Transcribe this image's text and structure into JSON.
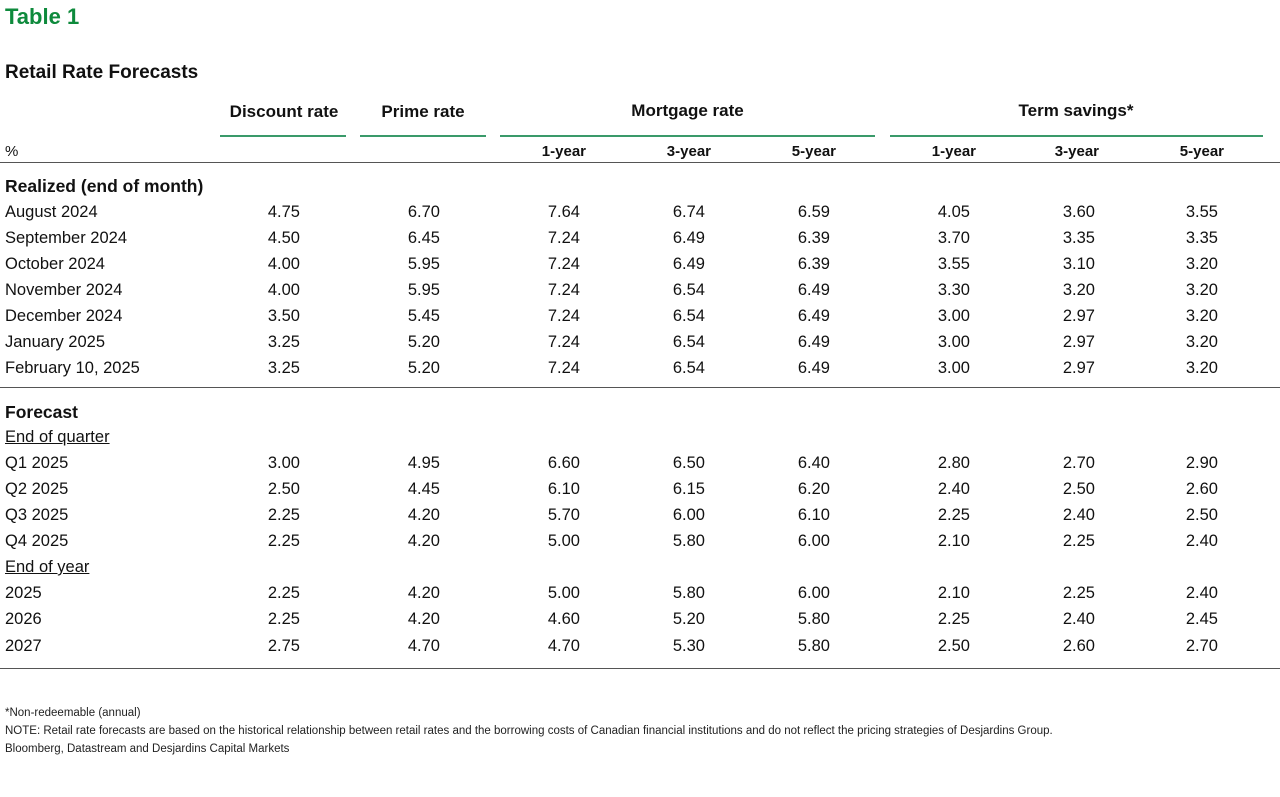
{
  "title": "Table 1",
  "subtitle": "Retail Rate Forecasts",
  "header": {
    "discount": "Discount rate",
    "prime": "Prime rate",
    "mortgage": "Mortgage rate",
    "term": "Term savings*",
    "unit": "%",
    "sub": [
      "1-year",
      "3-year",
      "5-year",
      "1-year",
      "3-year",
      "5-year"
    ]
  },
  "sections": {
    "realized": "Realized (end of month)",
    "forecast": "Forecast",
    "end_quarter": "End of quarter",
    "end_year": "End of year"
  },
  "realized_rows": [
    {
      "label": "August 2024",
      "values": [
        "4.75",
        "6.70",
        "7.64",
        "6.74",
        "6.59",
        "4.05",
        "3.60",
        "3.55"
      ]
    },
    {
      "label": "September 2024",
      "values": [
        "4.50",
        "6.45",
        "7.24",
        "6.49",
        "6.39",
        "3.70",
        "3.35",
        "3.35"
      ]
    },
    {
      "label": "October 2024",
      "values": [
        "4.00",
        "5.95",
        "7.24",
        "6.49",
        "6.39",
        "3.55",
        "3.10",
        "3.20"
      ]
    },
    {
      "label": "November 2024",
      "values": [
        "4.00",
        "5.95",
        "7.24",
        "6.54",
        "6.49",
        "3.30",
        "3.20",
        "3.20"
      ]
    },
    {
      "label": "December 2024",
      "values": [
        "3.50",
        "5.45",
        "7.24",
        "6.54",
        "6.49",
        "3.00",
        "2.97",
        "3.20"
      ]
    },
    {
      "label": "January 2025",
      "values": [
        "3.25",
        "5.20",
        "7.24",
        "6.54",
        "6.49",
        "3.00",
        "2.97",
        "3.20"
      ]
    },
    {
      "label": "February 10, 2025",
      "values": [
        "3.25",
        "5.20",
        "7.24",
        "6.54",
        "6.49",
        "3.00",
        "2.97",
        "3.20"
      ]
    }
  ],
  "quarter_rows": [
    {
      "label": "Q1 2025",
      "values": [
        "3.00",
        "4.95",
        "6.60",
        "6.50",
        "6.40",
        "2.80",
        "2.70",
        "2.90"
      ]
    },
    {
      "label": "Q2 2025",
      "values": [
        "2.50",
        "4.45",
        "6.10",
        "6.15",
        "6.20",
        "2.40",
        "2.50",
        "2.60"
      ]
    },
    {
      "label": "Q3 2025",
      "values": [
        "2.25",
        "4.20",
        "5.70",
        "6.00",
        "6.10",
        "2.25",
        "2.40",
        "2.50"
      ]
    },
    {
      "label": "Q4 2025",
      "values": [
        "2.25",
        "4.20",
        "5.00",
        "5.80",
        "6.00",
        "2.10",
        "2.25",
        "2.40"
      ]
    }
  ],
  "year_rows": [
    {
      "label": "2025",
      "values": [
        "2.25",
        "4.20",
        "5.00",
        "5.80",
        "6.00",
        "2.10",
        "2.25",
        "2.40"
      ]
    },
    {
      "label": "2026",
      "values": [
        "2.25",
        "4.20",
        "4.60",
        "5.20",
        "5.80",
        "2.25",
        "2.40",
        "2.45"
      ]
    },
    {
      "label": "2027",
      "values": [
        "2.75",
        "4.70",
        "4.70",
        "5.30",
        "5.80",
        "2.50",
        "2.60",
        "2.70"
      ]
    }
  ],
  "footnotes": [
    "*Non-redeemable (annual)",
    "NOTE: Retail rate forecasts are based on the historical relationship between retail rates and the borrowing costs of Canadian financial institutions and do not reflect the pricing strategies of Desjardins Group.",
    "Bloomberg, Datastream and Desjardins Capital Markets"
  ],
  "accent_color": "#0e8a3c"
}
